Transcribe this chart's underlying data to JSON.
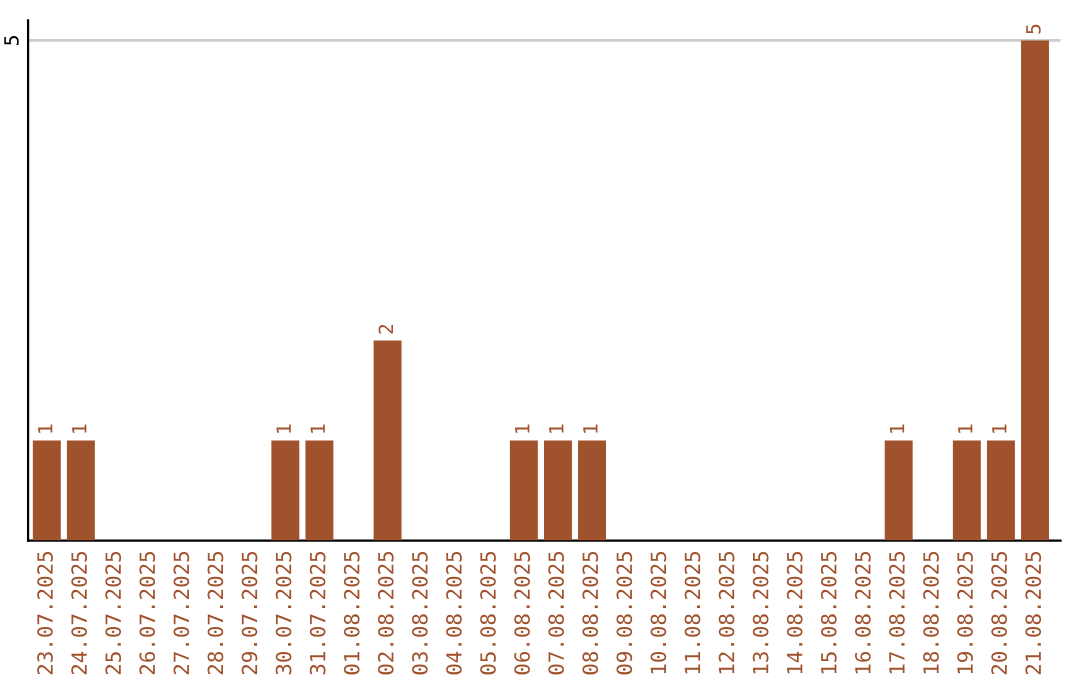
{
  "chart_data": {
    "type": "bar",
    "categories": [
      "23.07.2025",
      "24.07.2025",
      "25.07.2025",
      "26.07.2025",
      "27.07.2025",
      "28.07.2025",
      "29.07.2025",
      "30.07.2025",
      "31.07.2025",
      "01.08.2025",
      "02.08.2025",
      "03.08.2025",
      "04.08.2025",
      "05.08.2025",
      "06.08.2025",
      "07.08.2025",
      "08.08.2025",
      "09.08.2025",
      "10.08.2025",
      "11.08.2025",
      "12.08.2025",
      "13.08.2025",
      "14.08.2025",
      "15.08.2025",
      "16.08.2025",
      "17.08.2025",
      "18.08.2025",
      "19.08.2025",
      "20.08.2025",
      "21.08.2025"
    ],
    "values": [
      1,
      1,
      0,
      0,
      0,
      0,
      0,
      1,
      1,
      0,
      2,
      0,
      0,
      0,
      1,
      1,
      1,
      0,
      0,
      0,
      0,
      0,
      0,
      0,
      0,
      1,
      0,
      1,
      1,
      5
    ],
    "value_labels": [
      "1",
      "1",
      null,
      null,
      null,
      null,
      null,
      "1",
      "1",
      null,
      "2",
      null,
      null,
      null,
      "1",
      "1",
      "1",
      null,
      null,
      null,
      null,
      null,
      null,
      null,
      null,
      "1",
      null,
      "1",
      "1",
      "5"
    ],
    "color": "#a0522d",
    "ylim": [
      0,
      5.2
    ],
    "yticks": [
      5
    ],
    "grid": "y"
  }
}
